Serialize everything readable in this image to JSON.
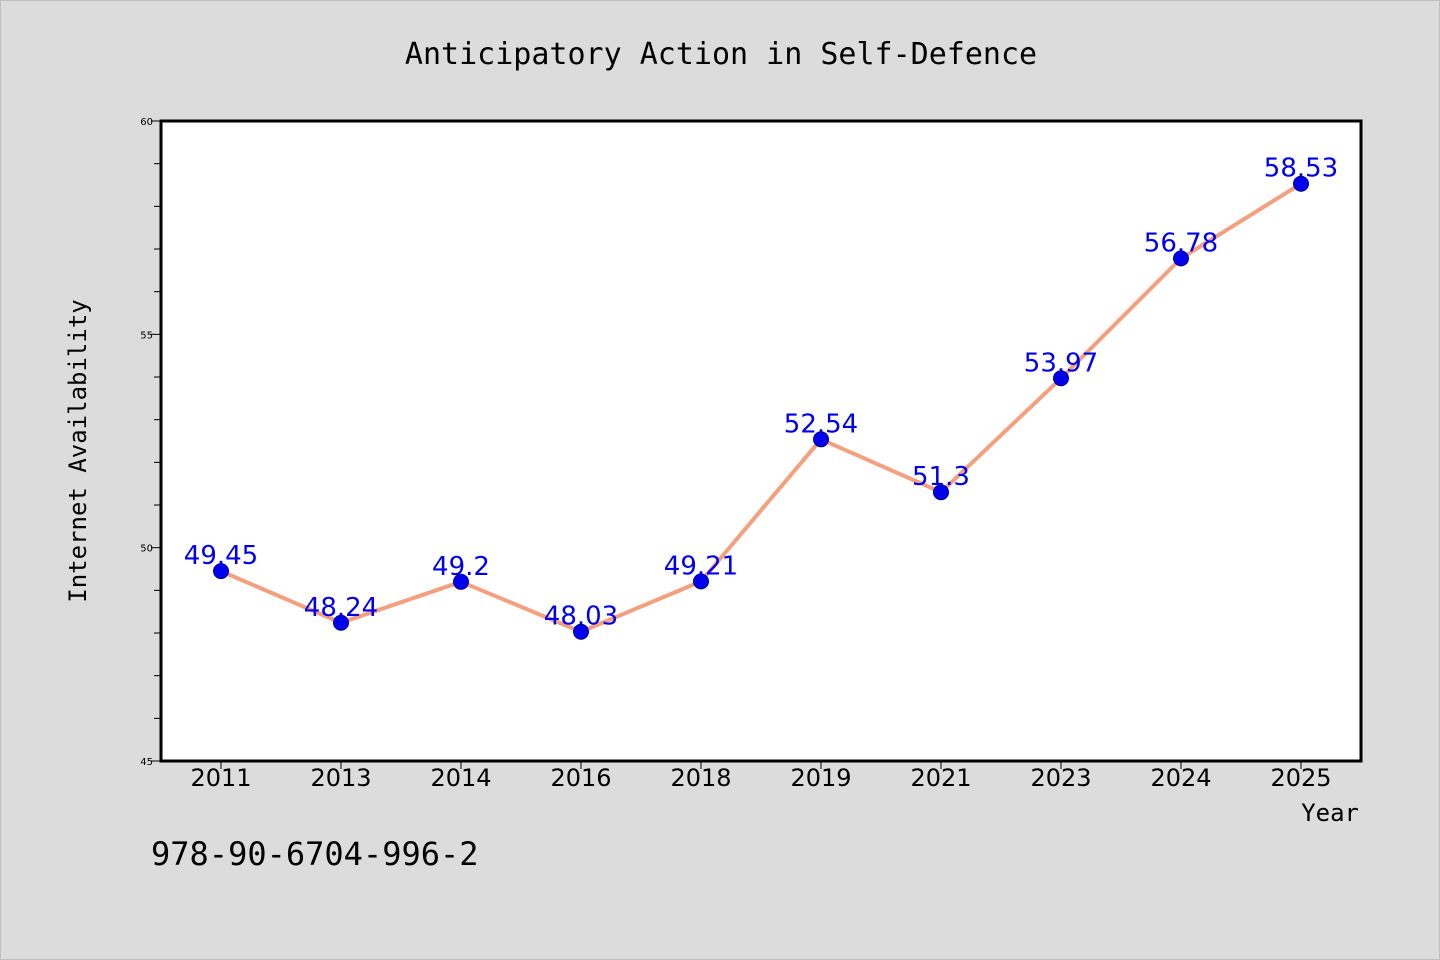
{
  "chart_data": {
    "type": "line",
    "title": "Anticipatory Action in Self-Defence",
    "xlabel": "Year",
    "ylabel": "Internet Availability",
    "categories": [
      "2011",
      "2013",
      "2014",
      "2016",
      "2018",
      "2019",
      "2021",
      "2023",
      "2024",
      "2025"
    ],
    "series": [
      {
        "values": [
          49.45,
          48.24,
          49.2,
          48.03,
          49.21,
          52.54,
          51.3,
          53.97,
          56.78,
          58.53
        ],
        "data_labels": [
          "49.45",
          "48.24",
          "49.2",
          "48.03",
          "49.21",
          "52.54",
          "51.3",
          "53.97",
          "56.78",
          "58.53"
        ],
        "line_color": "#f4a07e",
        "marker_color": "#0000ee",
        "label_color": "#0000ee"
      }
    ],
    "ylim": [
      45,
      60
    ],
    "yticks": [
      45,
      50,
      55,
      60
    ],
    "ytick_labels": [
      "45",
      "50",
      "55",
      "60"
    ],
    "grid": false,
    "legend": "none"
  },
  "footer_text": "978-90-6704-996-2",
  "colors": {
    "background": "#dcdcdc",
    "plot_background": "#ffffff",
    "axes": "#000000"
  }
}
